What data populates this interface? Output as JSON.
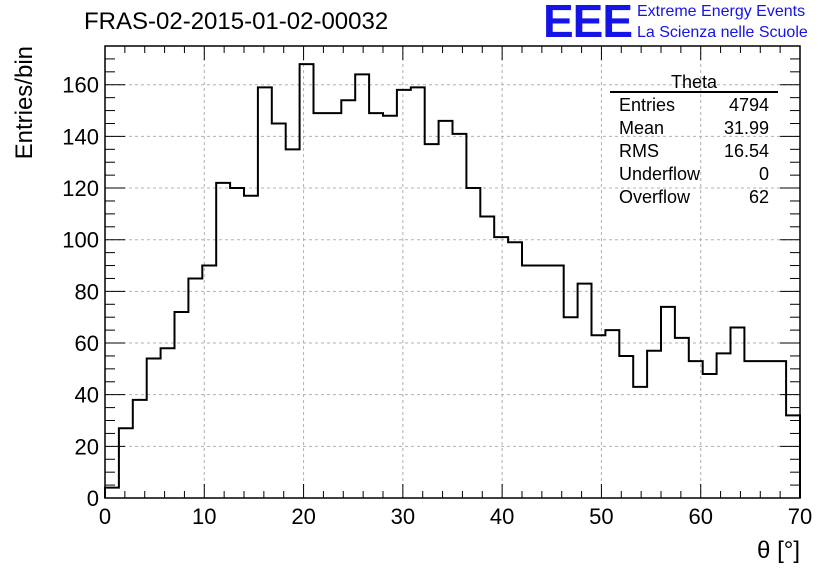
{
  "header": {
    "run_title": "FRAS-02-2015-01-02-00032",
    "logo_text": "EEE",
    "logo_line1": "Extreme Energy Events",
    "logo_line2": "La Scienza nelle Scuole"
  },
  "stats_box": {
    "title": "Theta",
    "rows": [
      {
        "label": "Entries",
        "value": "4794"
      },
      {
        "label": "Mean",
        "value": "31.99"
      },
      {
        "label": "RMS",
        "value": "16.54"
      },
      {
        "label": "Underflow",
        "value": "0"
      },
      {
        "label": "Overflow",
        "value": "62"
      }
    ]
  },
  "colors": {
    "logo": "#1414e6",
    "grid": "#b0b0b0",
    "line": "#000000"
  },
  "chart_data": {
    "type": "histogram",
    "xlabel": "θ [°]",
    "ylabel": "Entries/bin",
    "xlim": [
      0,
      70
    ],
    "ylim": [
      0,
      175
    ],
    "grid": true,
    "x_ticks": [
      0,
      10,
      20,
      30,
      40,
      50,
      60,
      70
    ],
    "y_ticks": [
      0,
      20,
      40,
      60,
      80,
      100,
      120,
      140,
      160
    ],
    "bin_width": 1.4,
    "bin_edges_start": 0,
    "values": [
      4,
      27,
      38,
      54,
      58,
      72,
      85,
      90,
      122,
      120,
      117,
      159,
      145,
      135,
      168,
      149,
      149,
      154,
      164,
      149,
      148,
      158,
      159,
      137,
      146,
      141,
      120,
      109,
      101,
      99,
      90,
      90,
      90,
      70,
      83,
      63,
      65,
      55,
      43,
      57,
      74,
      62,
      53,
      48,
      56,
      66,
      53,
      53,
      53,
      32
    ]
  }
}
